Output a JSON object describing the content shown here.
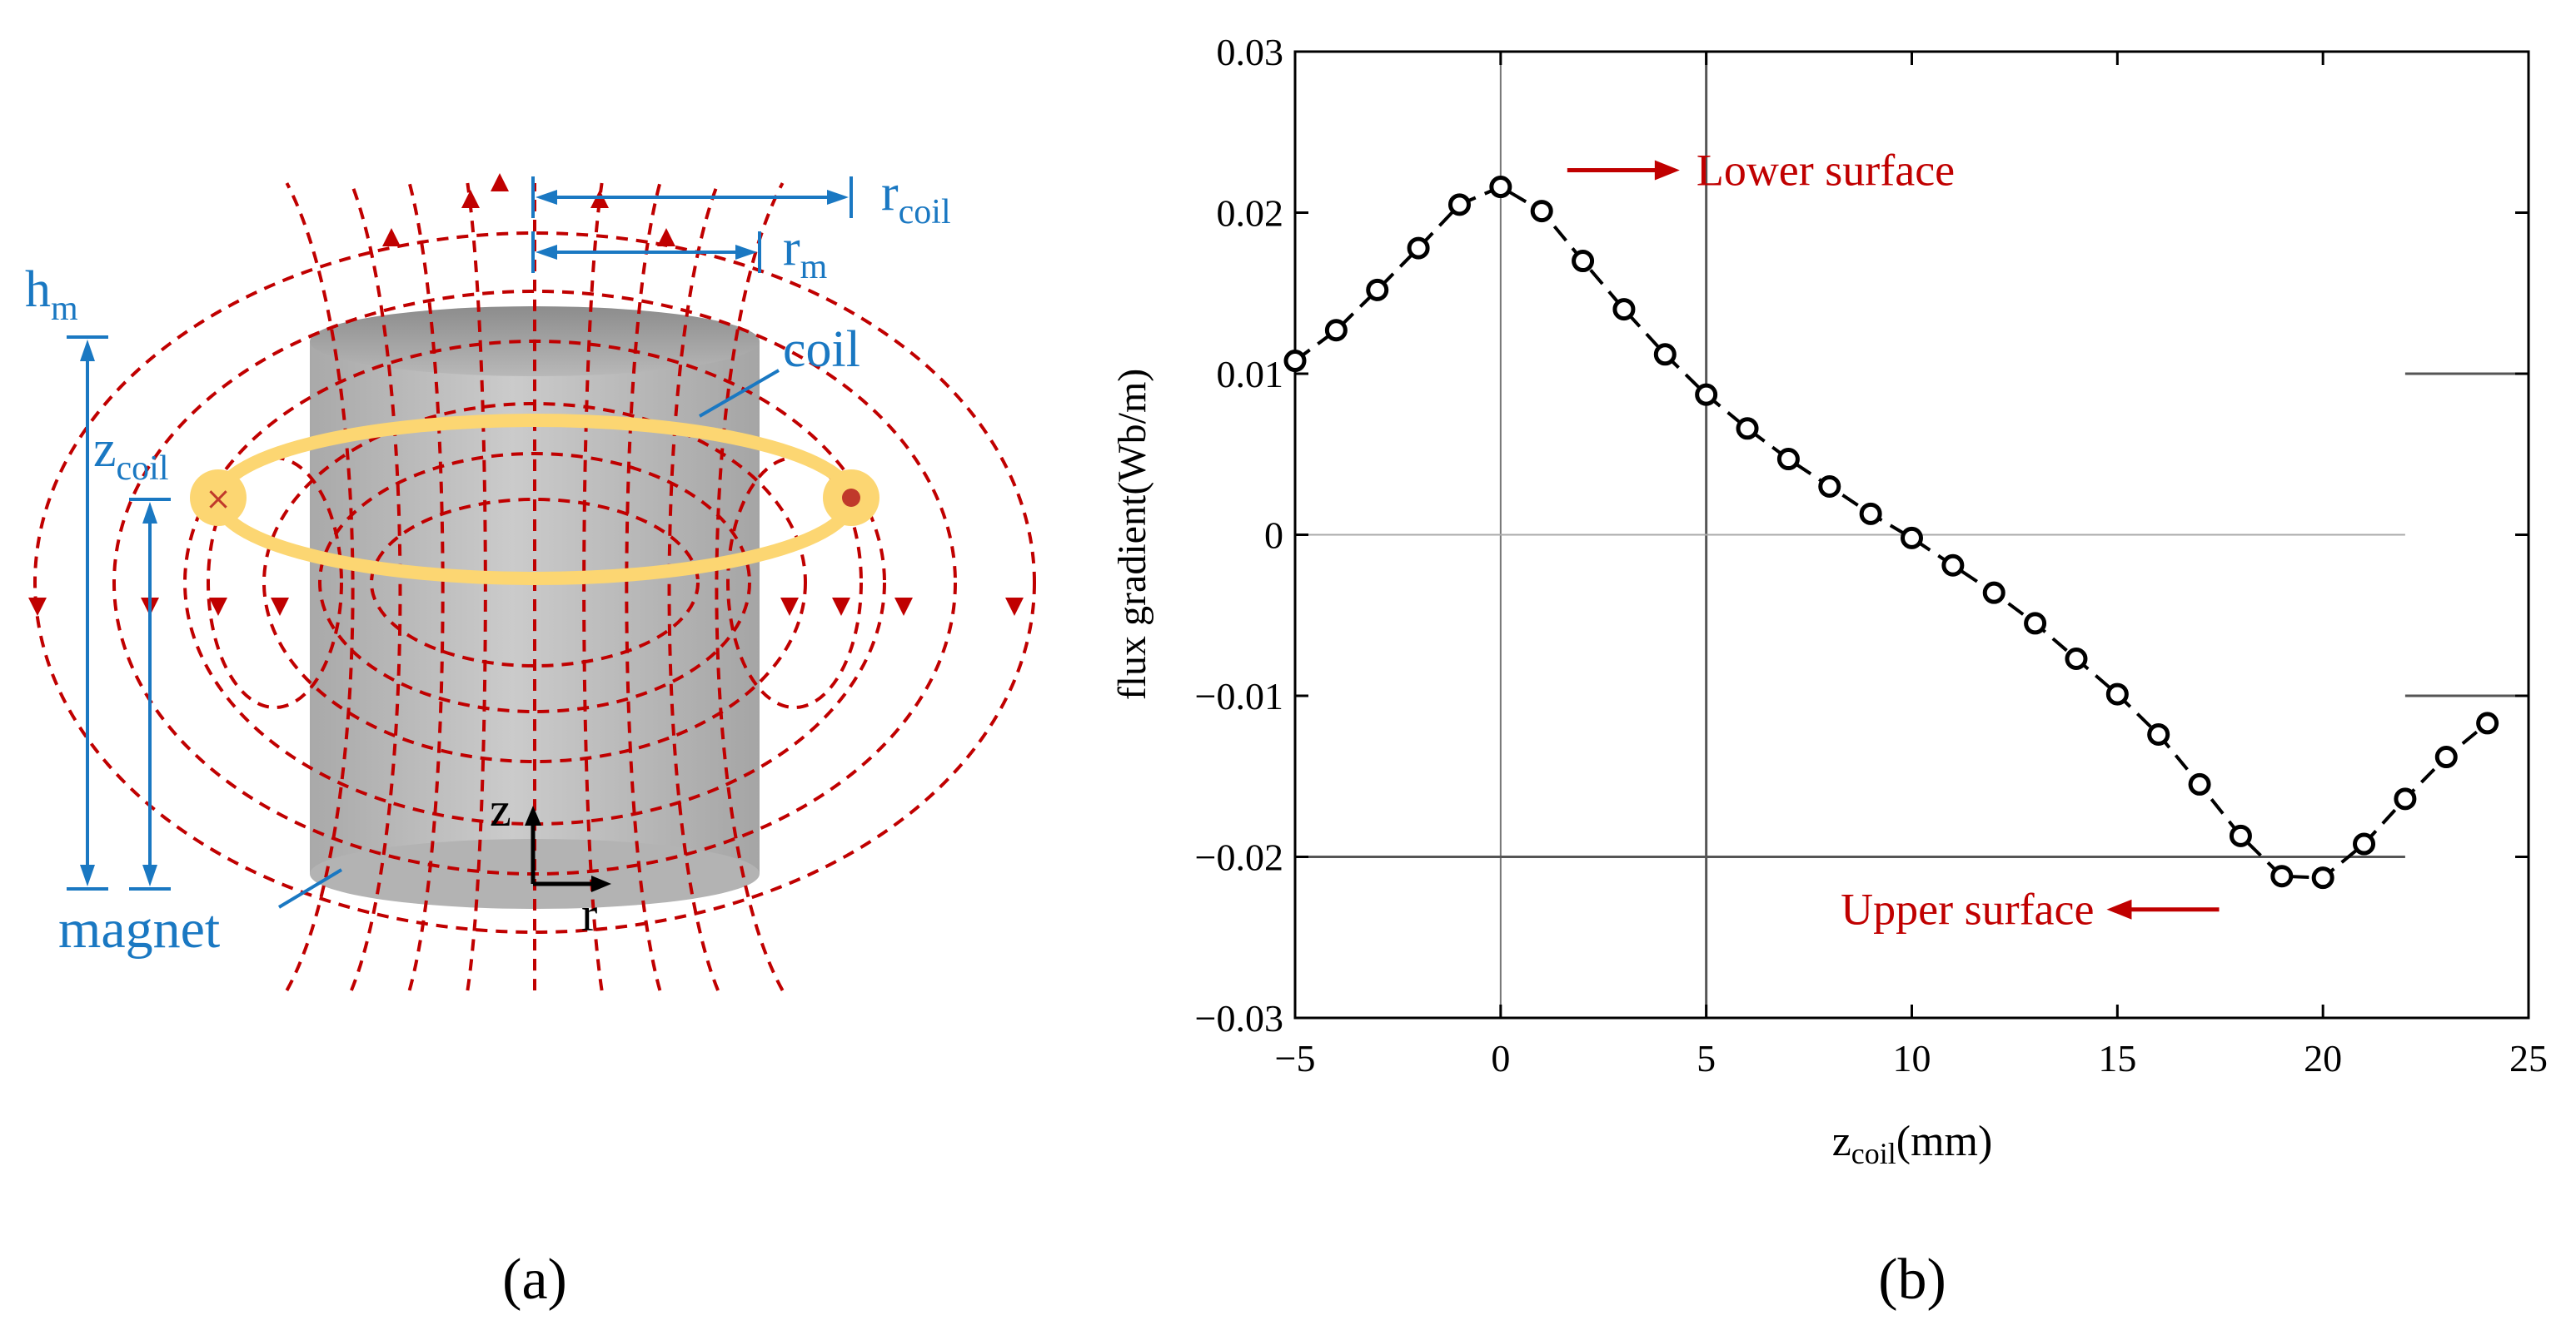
{
  "panel_a": {
    "label": "(a)",
    "labels": {
      "h_m": {
        "main": "h",
        "sub": "m"
      },
      "z_coil": {
        "main": "z",
        "sub": "coil"
      },
      "r_coil": {
        "main": "r",
        "sub": "coil"
      },
      "r_m": {
        "main": "r",
        "sub": "m"
      },
      "coil": "coil",
      "magnet": "magnet",
      "axis_z": "z",
      "axis_r": "r"
    },
    "colors": {
      "field_lines": "#c00000",
      "dimensions": "#1a78c2",
      "coil": "#fcd672",
      "magnet": "#bdbdbd"
    }
  },
  "panel_b": {
    "label": "(b)"
  },
  "chart_data": {
    "type": "line",
    "title": "",
    "xlabel": {
      "main": "z",
      "sub": "coil",
      "unit": "(mm)"
    },
    "ylabel": "flux gradient(Wb/m)",
    "xlim": [
      -5,
      25
    ],
    "ylim": [
      -0.03,
      0.03
    ],
    "xticks": [
      -5,
      0,
      5,
      10,
      15,
      20,
      25
    ],
    "xtick_labels": [
      "−5",
      "0",
      "5",
      "10",
      "15",
      "20",
      "25"
    ],
    "yticks": [
      -0.03,
      -0.02,
      -0.01,
      0,
      0.01,
      0.02,
      0.03
    ],
    "ytick_labels": [
      "−0.03",
      "−0.02",
      "−0.01",
      "0",
      "0.01",
      "0.02",
      "0.03"
    ],
    "series": [
      {
        "name": "flux gradient",
        "style": "dashed line with open circle markers",
        "x": [
          -5,
          -4,
          -3,
          -2,
          -1,
          0,
          1,
          2,
          3,
          4,
          5,
          6,
          7,
          8,
          9,
          10,
          11,
          12,
          13,
          14,
          15,
          16,
          17,
          18,
          19,
          20,
          21,
          22,
          23,
          24
        ],
        "y": [
          0.0108,
          0.0127,
          0.0152,
          0.0178,
          0.0205,
          0.0216,
          0.0201,
          0.017,
          0.014,
          0.0112,
          0.0087,
          0.0066,
          0.0047,
          0.003,
          0.0013,
          -0.0002,
          -0.0019,
          -0.0036,
          -0.0055,
          -0.0077,
          -0.0099,
          -0.0124,
          -0.0155,
          -0.0187,
          -0.0212,
          -0.0213,
          -0.0192,
          -0.0164,
          -0.0138,
          -0.0117
        ]
      }
    ],
    "reference_lines": {
      "vertical_x": [
        0,
        5
      ],
      "horizontal_y": [
        0,
        -0.02
      ]
    },
    "annotations": [
      {
        "text": "Lower surface",
        "arrow": "right",
        "color": "#c00000",
        "near_x": 0,
        "near_y": 0.0216
      },
      {
        "text": "Upper surface",
        "arrow": "left",
        "color": "#c00000",
        "near_x": 19.5,
        "near_y": -0.0212
      }
    ]
  }
}
